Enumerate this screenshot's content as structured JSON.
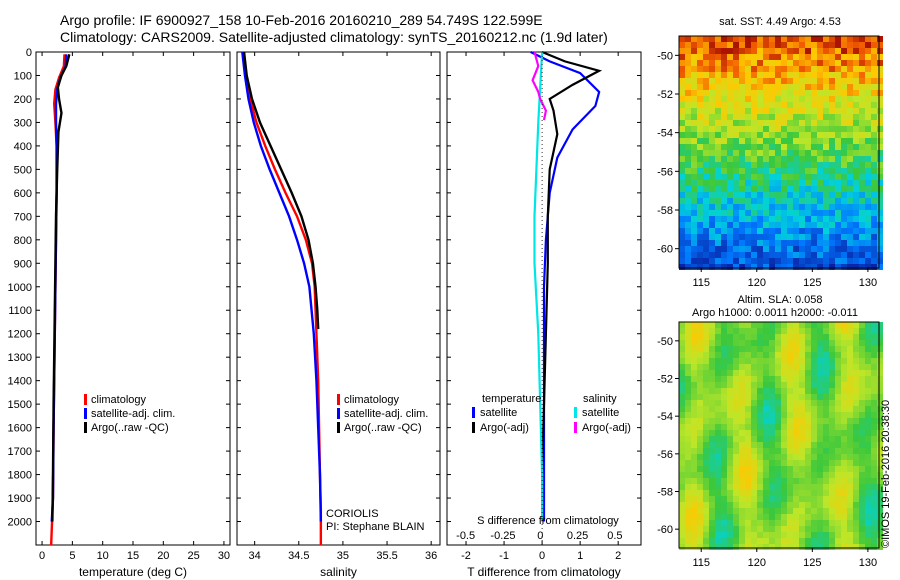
{
  "title_line1": "Argo profile: IF 6900927_158 10-Feb-2016 20160210_289 54.749S 122.599E",
  "title_line2": "Climatology: CARS2009. Satellite-adjusted climatology: synTS_20160212.nc (1.9d later)",
  "colors": {
    "climatology": "#ff0000",
    "satellite": "#0000ff",
    "argo": "#000000",
    "sat_salinity": "#00e5e5",
    "argo_salinity": "#ff00ff"
  },
  "credit": "©IMOS 19-Feb-2016 20:38:30",
  "sst_map": {
    "title": "sat. SST: 4.49 Argo: 4.53"
  },
  "sla_map": {
    "title1": "Altim. SLA: 0.058",
    "title2": "Argo h1000: 0.0011 h2000: -0.011"
  },
  "chart_data": [
    {
      "type": "line",
      "name": "temperature panel",
      "xlabel": "temperature (deg C)",
      "ylabel": "",
      "xlim": [
        -1,
        31
      ],
      "ylim": [
        2100,
        0
      ],
      "xticks": [
        0,
        5,
        10,
        15,
        20,
        25,
        30
      ],
      "yticks": [
        0,
        100,
        200,
        300,
        400,
        500,
        600,
        700,
        800,
        900,
        1000,
        1100,
        1200,
        1300,
        1400,
        1500,
        1600,
        1700,
        1800,
        1900,
        2000
      ],
      "legend": [
        "climatology",
        "satellite-adj. clim.",
        "Argo(..raw -QC)"
      ],
      "legend_position": "lower-center",
      "series": [
        {
          "name": "climatology",
          "color": "#ff0000",
          "x": [
            3.7,
            3.6,
            2.8,
            2.2,
            2.0,
            2.2,
            2.4,
            2.4,
            2.3,
            2.2,
            2.1,
            2.0,
            1.9,
            1.8,
            1.5
          ],
          "y": [
            10,
            60,
            110,
            160,
            220,
            300,
            400,
            600,
            800,
            1000,
            1200,
            1400,
            1600,
            1900,
            2100
          ]
        },
        {
          "name": "satellite-adj. clim.",
          "color": "#0000ff",
          "x": [
            4.0,
            3.9,
            3.0,
            2.5,
            2.3,
            2.3,
            2.4,
            2.4,
            2.3,
            2.2,
            2.1,
            2.0,
            1.9,
            1.8,
            1.6
          ],
          "y": [
            10,
            60,
            110,
            160,
            220,
            300,
            400,
            600,
            800,
            1000,
            1200,
            1400,
            1600,
            1900,
            2000
          ]
        },
        {
          "name": "Argo(..raw -QC)",
          "color": "#000000",
          "x": [
            4.5,
            4.0,
            3.2,
            2.6,
            2.8,
            3.2,
            2.7,
            2.5,
            2.3,
            2.2,
            2.1,
            2.0,
            1.9,
            1.8,
            1.7
          ],
          "y": [
            10,
            60,
            100,
            150,
            200,
            260,
            340,
            500,
            700,
            900,
            1100,
            1300,
            1500,
            1800,
            2000
          ]
        }
      ]
    },
    {
      "type": "line",
      "name": "salinity panel",
      "xlabel": "salinity",
      "ylabel": "",
      "xlim": [
        33.8,
        36.1
      ],
      "ylim": [
        2100,
        0
      ],
      "xticks": [
        34,
        34.5,
        35,
        35.5,
        36
      ],
      "xticklabels": [
        "34",
        "34.5",
        "35",
        "35.5",
        "36"
      ],
      "legend": [
        "climatology",
        "satellite-adj. clim.",
        "Argo(..raw -QC)"
      ],
      "legend_position": "lower-center",
      "annotation": [
        "CORIOLIS",
        "PI: Stephane BLAIN"
      ],
      "series": [
        {
          "name": "climatology",
          "color": "#ff0000",
          "x": [
            33.87,
            33.9,
            33.95,
            34.02,
            34.12,
            34.23,
            34.35,
            34.48,
            34.58,
            34.65,
            34.68,
            34.7,
            34.72,
            34.73,
            34.74,
            34.75,
            34.75,
            34.75
          ],
          "y": [
            0,
            100,
            200,
            300,
            400,
            500,
            600,
            700,
            800,
            900,
            1000,
            1200,
            1400,
            1600,
            1800,
            1950,
            2000,
            2100
          ]
        },
        {
          "name": "satellite-adj. clim.",
          "color": "#0000ff",
          "x": [
            33.86,
            33.89,
            33.93,
            33.99,
            34.07,
            34.17,
            34.28,
            34.39,
            34.48,
            34.56,
            34.62,
            34.67,
            34.7,
            34.72,
            34.74,
            34.75
          ],
          "y": [
            0,
            100,
            200,
            300,
            400,
            500,
            600,
            700,
            800,
            900,
            1000,
            1200,
            1400,
            1600,
            1800,
            2000
          ]
        },
        {
          "name": "Argo(..raw -QC)",
          "color": "#000000",
          "x": [
            33.88,
            33.91,
            33.97,
            34.06,
            34.18,
            34.3,
            34.42,
            34.53,
            34.61,
            34.66,
            34.69,
            34.71,
            34.72
          ],
          "y": [
            0,
            100,
            200,
            300,
            400,
            500,
            600,
            700,
            800,
            900,
            1000,
            1100,
            1180
          ]
        }
      ]
    },
    {
      "type": "line",
      "name": "difference panel",
      "xlabel": "T difference from climatology",
      "xlabel_top": "S difference from climatology",
      "xlim": [
        -2.5,
        2.6
      ],
      "ylim": [
        2100,
        0
      ],
      "xticks": [
        -2,
        -1,
        0,
        1,
        2
      ],
      "xticks_salinity": [
        -0.5,
        -0.25,
        0,
        0.25,
        0.5
      ],
      "legend_title_t": "temperature",
      "legend_title_s": "salinity",
      "legend_t": [
        "satellite",
        "Argo(-adj)"
      ],
      "legend_s": [
        "satellite",
        "Argo(-adj)"
      ],
      "series": [
        {
          "name": "satellite",
          "color": "#0000ff",
          "x": [
            -0.3,
            0.2,
            1.0,
            1.5,
            1.4,
            0.8,
            0.4,
            0.2,
            0.1,
            0.05,
            0.05,
            0.05,
            0.05
          ],
          "y": [
            0,
            40,
            90,
            170,
            230,
            330,
            450,
            600,
            800,
            1000,
            1400,
            1800,
            2000
          ]
        },
        {
          "name": "Argo(-adj)",
          "color": "#000000",
          "x": [
            0.0,
            0.6,
            1.5,
            0.8,
            0.2,
            0.3,
            0.4,
            0.2,
            0.15,
            0.15,
            0.1,
            0.05,
            0.0,
            0.0
          ],
          "y": [
            0,
            40,
            80,
            140,
            200,
            250,
            350,
            500,
            700,
            900,
            1200,
            1500,
            1800,
            2000
          ]
        },
        {
          "name": "satellite",
          "color": "#00e5e5",
          "x": [
            0.0,
            -0.1,
            -0.15,
            -0.2,
            -0.2,
            -0.1,
            -0.05,
            0.0,
            0.0
          ],
          "y": [
            0,
            300,
            500,
            700,
            900,
            1200,
            1500,
            1800,
            2000
          ]
        },
        {
          "name": "Argo(-adj)",
          "color": "#ff00ff",
          "x": [
            -0.2,
            -0.1,
            -0.25,
            -0.1,
            -0.05,
            0.1,
            0.05
          ],
          "y": [
            0,
            60,
            120,
            170,
            200,
            250,
            290
          ]
        }
      ]
    },
    {
      "type": "heatmap",
      "name": "sat. SST map",
      "title": "sat. SST: 4.49 Argo: 4.53",
      "xlim": [
        113,
        131
      ],
      "ylim": [
        -61,
        -49
      ],
      "xticks": [
        115,
        120,
        125,
        130
      ],
      "yticks": [
        -50,
        -52,
        -54,
        -56,
        -58,
        -60
      ]
    },
    {
      "type": "heatmap",
      "name": "Altim. SLA map",
      "title": "Altim. SLA: 0.058",
      "subtitle": "Argo h1000: 0.0011 h2000: -0.011",
      "xlim": [
        113,
        131
      ],
      "ylim": [
        -61,
        -49
      ],
      "xticks": [
        115,
        120,
        125,
        130
      ],
      "yticks": [
        -50,
        -52,
        -54,
        -56,
        -58,
        -60
      ]
    }
  ]
}
